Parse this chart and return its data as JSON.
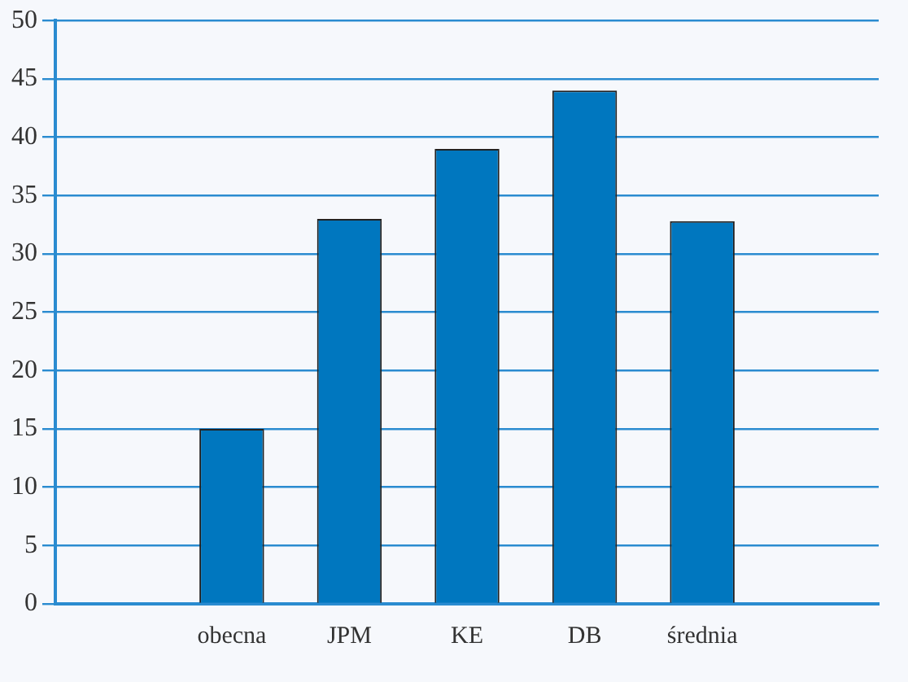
{
  "chart_data": {
    "type": "bar",
    "categories": [
      null,
      "obecna",
      "JPM",
      "KE",
      "DB",
      "średnia",
      null
    ],
    "values": [
      null,
      15,
      33,
      39,
      44,
      32.8,
      null
    ],
    "color": "#0077bf",
    "ylim": [
      0,
      50
    ],
    "yticks": [
      0,
      5,
      10,
      15,
      20,
      25,
      30,
      35,
      40,
      45,
      50
    ],
    "grid": "y",
    "legend": false
  }
}
